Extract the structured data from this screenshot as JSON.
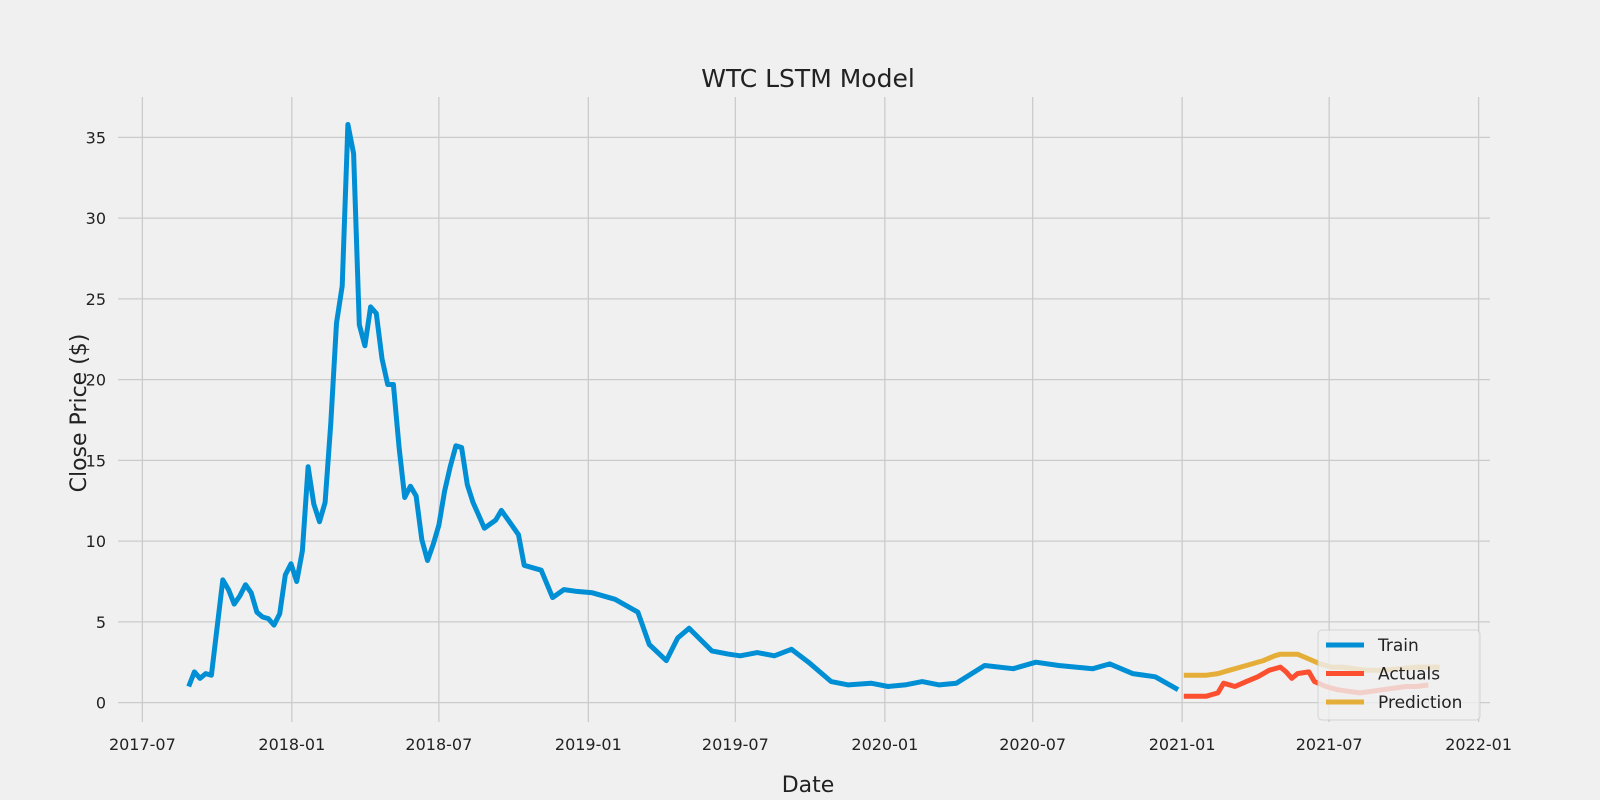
{
  "chart_data": {
    "type": "line",
    "title": "WTC LSTM Model",
    "xlabel": "Date",
    "ylabel": "Close Price ($)",
    "xlim": [
      "2017-06-01",
      "2022-01-15"
    ],
    "ylim": [
      -1.2,
      37.5
    ],
    "x_ticks": [
      "2017-07-01",
      "2018-01-01",
      "2018-07-01",
      "2019-01-01",
      "2019-07-01",
      "2020-01-01",
      "2020-07-01",
      "2021-01-01",
      "2021-07-01",
      "2022-01-01"
    ],
    "x_tick_labels": [
      "2017-07",
      "2018-01",
      "2018-07",
      "2019-01",
      "2019-07",
      "2020-01",
      "2020-07",
      "2021-01",
      "2021-07",
      "2022-01"
    ],
    "y_ticks": [
      0,
      5,
      10,
      15,
      20,
      25,
      30,
      35
    ],
    "y_tick_labels": [
      "0",
      "5",
      "10",
      "15",
      "20",
      "25",
      "30",
      "35"
    ],
    "grid": true,
    "legend_position": "lower-right",
    "colors": {
      "background": "#f0f0f0",
      "grid": "#cbcbcb",
      "train": "#008fd5",
      "actuals": "#fc4f30",
      "prediction": "#e5ae38"
    },
    "series": [
      {
        "name": "Train",
        "x": [
          "2017-08-27",
          "2017-09-03",
          "2017-09-10",
          "2017-09-17",
          "2017-09-24",
          "2017-10-08",
          "2017-10-15",
          "2017-10-22",
          "2017-10-29",
          "2017-11-05",
          "2017-11-12",
          "2017-11-19",
          "2017-11-26",
          "2017-12-03",
          "2017-12-10",
          "2017-12-17",
          "2017-12-24",
          "2017-12-31",
          "2018-01-07",
          "2018-01-14",
          "2018-01-21",
          "2018-01-28",
          "2018-02-04",
          "2018-02-11",
          "2018-02-18",
          "2018-02-25",
          "2018-03-04",
          "2018-03-11",
          "2018-03-18",
          "2018-03-25",
          "2018-04-01",
          "2018-04-08",
          "2018-04-15",
          "2018-04-22",
          "2018-04-29",
          "2018-05-06",
          "2018-05-13",
          "2018-05-20",
          "2018-05-27",
          "2018-06-03",
          "2018-06-10",
          "2018-06-17",
          "2018-06-24",
          "2018-07-01",
          "2018-07-08",
          "2018-07-15",
          "2018-07-22",
          "2018-07-29",
          "2018-08-05",
          "2018-08-12",
          "2018-08-19",
          "2018-08-26",
          "2018-09-09",
          "2018-09-16",
          "2018-10-07",
          "2018-10-14",
          "2018-11-04",
          "2018-11-18",
          "2018-12-02",
          "2018-12-16",
          "2019-01-06",
          "2019-02-03",
          "2019-03-03",
          "2019-03-17",
          "2019-04-07",
          "2019-04-21",
          "2019-05-05",
          "2019-06-02",
          "2019-06-23",
          "2019-07-07",
          "2019-07-28",
          "2019-08-18",
          "2019-09-08",
          "2019-09-29",
          "2019-10-27",
          "2019-11-17",
          "2019-12-15",
          "2020-01-05",
          "2020-01-26",
          "2020-02-16",
          "2020-03-08",
          "2020-03-29",
          "2020-05-03",
          "2020-06-07",
          "2020-07-05",
          "2020-08-02",
          "2020-08-23",
          "2020-09-13",
          "2020-10-04",
          "2020-11-01",
          "2020-11-29",
          "2020-12-27"
        ],
        "values": [
          1.0,
          1.9,
          1.5,
          1.8,
          1.7,
          7.6,
          7.0,
          6.1,
          6.6,
          7.3,
          6.8,
          5.6,
          5.3,
          5.2,
          4.8,
          5.5,
          7.9,
          8.6,
          7.5,
          9.4,
          14.6,
          12.3,
          11.2,
          12.4,
          17.3,
          23.5,
          25.8,
          35.8,
          34.0,
          23.4,
          22.1,
          24.5,
          24.1,
          21.3,
          19.7,
          19.7,
          15.8,
          12.7,
          13.4,
          12.8,
          10.1,
          8.8,
          9.8,
          11.0,
          13.1,
          14.6,
          15.9,
          15.8,
          13.5,
          12.4,
          11.6,
          10.8,
          11.3,
          11.9,
          10.4,
          8.5,
          8.2,
          6.5,
          7.0,
          6.9,
          6.8,
          6.4,
          5.6,
          3.6,
          2.6,
          4.0,
          4.6,
          3.2,
          3.0,
          2.9,
          3.1,
          2.9,
          3.3,
          2.5,
          1.3,
          1.1,
          1.2,
          1.0,
          1.1,
          1.3,
          1.1,
          1.2,
          2.3,
          2.1,
          2.5,
          2.3,
          2.2,
          2.1,
          2.4,
          1.8,
          1.6,
          0.8
        ]
      },
      {
        "name": "Actuals",
        "x": [
          "2021-01-03",
          "2021-01-17",
          "2021-01-31",
          "2021-02-07",
          "2021-02-14",
          "2021-02-21",
          "2021-03-07",
          "2021-03-21",
          "2021-04-04",
          "2021-04-18",
          "2021-05-02",
          "2021-05-09",
          "2021-05-16",
          "2021-05-23",
          "2021-06-06",
          "2021-06-13",
          "2021-06-27",
          "2021-07-11",
          "2021-07-25",
          "2021-08-08",
          "2021-08-22",
          "2021-09-05",
          "2021-09-19",
          "2021-10-03",
          "2021-10-17",
          "2021-10-31"
        ],
        "values": [
          0.4,
          0.4,
          0.4,
          0.5,
          0.6,
          1.2,
          1.0,
          1.3,
          1.6,
          2.0,
          2.2,
          1.9,
          1.5,
          1.8,
          1.9,
          1.3,
          1.0,
          0.8,
          0.7,
          0.6,
          0.7,
          0.8,
          0.9,
          1.0,
          1.0,
          1.1
        ]
      },
      {
        "name": "Prediction",
        "x": [
          "2021-01-03",
          "2021-01-31",
          "2021-02-14",
          "2021-02-28",
          "2021-03-14",
          "2021-03-28",
          "2021-04-11",
          "2021-04-25",
          "2021-05-02",
          "2021-05-23",
          "2021-06-06",
          "2021-06-20",
          "2021-07-04",
          "2021-07-18",
          "2021-08-01",
          "2021-08-15",
          "2021-09-05",
          "2021-09-26",
          "2021-10-17",
          "2021-10-31",
          "2021-11-14"
        ],
        "values": [
          1.7,
          1.7,
          1.8,
          2.0,
          2.2,
          2.4,
          2.6,
          2.9,
          3.0,
          3.0,
          2.7,
          2.4,
          2.2,
          2.2,
          2.1,
          2.0,
          2.0,
          2.1,
          2.2,
          2.2,
          2.2
        ]
      }
    ]
  }
}
